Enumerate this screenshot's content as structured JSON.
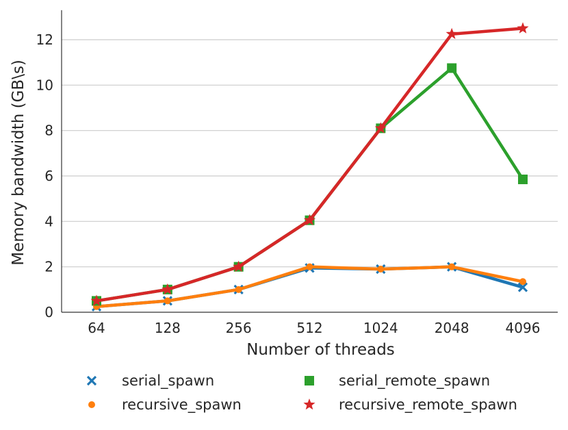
{
  "chart_data": {
    "type": "line",
    "title": "",
    "xlabel": "Number of threads",
    "ylabel": "Memory bandwidth (GB\\s)",
    "categories": [
      "64",
      "128",
      "256",
      "512",
      "1024",
      "2048",
      "4096"
    ],
    "ylim": [
      0,
      13.3
    ],
    "yticks": [
      0,
      2,
      4,
      6,
      8,
      10,
      12
    ],
    "grid": "horizontal",
    "legend_position": "bottom",
    "series": [
      {
        "name": "serial_spawn",
        "color": "#1f77b4",
        "marker": "x",
        "values": [
          0.25,
          0.5,
          1.0,
          1.95,
          1.9,
          2.0,
          1.1
        ]
      },
      {
        "name": "recursive_spawn",
        "color": "#ff7f0e",
        "marker": "circle",
        "values": [
          0.25,
          0.5,
          1.0,
          2.0,
          1.9,
          2.0,
          1.35
        ]
      },
      {
        "name": "serial_remote_spawn",
        "color": "#2ca02c",
        "marker": "square",
        "values": [
          0.5,
          1.0,
          2.0,
          4.05,
          8.1,
          10.75,
          5.85
        ]
      },
      {
        "name": "recursive_remote_spawn",
        "color": "#d62728",
        "marker": "star",
        "values": [
          0.5,
          1.0,
          2.0,
          4.05,
          8.1,
          12.25,
          12.5
        ]
      }
    ]
  }
}
